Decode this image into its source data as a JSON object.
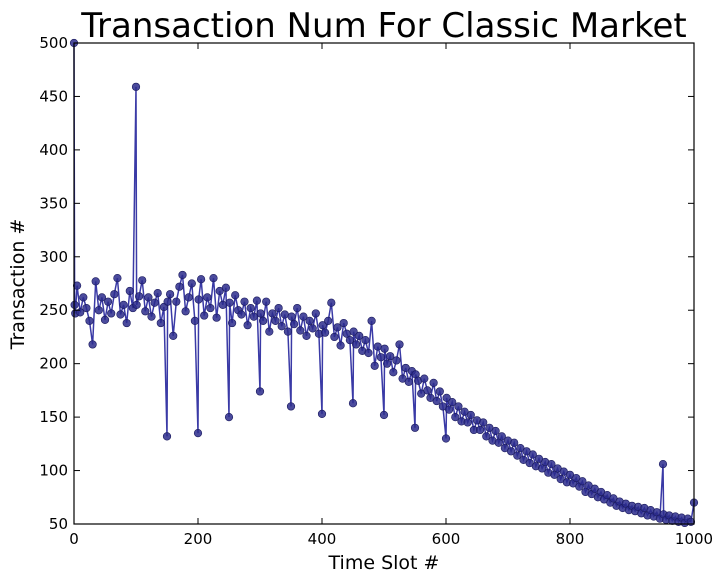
{
  "chart_data": {
    "type": "line",
    "title": "Transaction Num For Classic Market",
    "xlabel": "Time Slot #",
    "ylabel": "Transaction #",
    "xlim": [
      0,
      1000
    ],
    "ylim": [
      50,
      500
    ],
    "x_ticks": [
      0,
      200,
      400,
      600,
      800,
      1000
    ],
    "y_ticks": [
      50,
      100,
      150,
      200,
      250,
      300,
      350,
      400,
      450,
      500
    ],
    "grid": false,
    "legend": "none",
    "series": [
      {
        "marker": "circle",
        "line_color": "#3a3aa6",
        "marker_color": "#2c2c8c",
        "description_of_trend_points": [
          [
            0,
            500
          ],
          [
            1,
            255
          ],
          [
            2,
            247
          ],
          [
            5,
            273
          ],
          [
            10,
            248
          ],
          [
            15,
            262
          ],
          [
            20,
            252
          ],
          [
            25,
            240
          ],
          [
            30,
            218
          ],
          [
            35,
            277
          ],
          [
            40,
            250
          ],
          [
            45,
            262
          ],
          [
            50,
            241
          ],
          [
            55,
            258
          ],
          [
            60,
            247
          ],
          [
            65,
            265
          ],
          [
            70,
            280
          ],
          [
            75,
            246
          ],
          [
            80,
            255
          ],
          [
            85,
            238
          ],
          [
            90,
            268
          ],
          [
            95,
            252
          ],
          [
            100,
            459
          ],
          [
            101,
            255
          ],
          [
            105,
            263
          ],
          [
            110,
            278
          ],
          [
            115,
            249
          ],
          [
            120,
            262
          ],
          [
            125,
            244
          ],
          [
            130,
            257
          ],
          [
            135,
            266
          ],
          [
            140,
            238
          ],
          [
            145,
            253
          ],
          [
            150,
            132
          ],
          [
            151,
            258
          ],
          [
            155,
            265
          ],
          [
            160,
            226
          ],
          [
            165,
            258
          ],
          [
            170,
            272
          ],
          [
            175,
            283
          ],
          [
            180,
            249
          ],
          [
            185,
            262
          ],
          [
            190,
            275
          ],
          [
            195,
            240
          ],
          [
            200,
            135
          ],
          [
            201,
            260
          ],
          [
            205,
            279
          ],
          [
            210,
            245
          ],
          [
            215,
            262
          ],
          [
            220,
            252
          ],
          [
            225,
            280
          ],
          [
            230,
            243
          ],
          [
            235,
            268
          ],
          [
            240,
            255
          ],
          [
            245,
            271
          ],
          [
            250,
            150
          ],
          [
            251,
            257
          ],
          [
            255,
            238
          ],
          [
            260,
            264
          ],
          [
            265,
            250
          ],
          [
            270,
            246
          ],
          [
            275,
            258
          ],
          [
            280,
            236
          ],
          [
            285,
            252
          ],
          [
            290,
            244
          ],
          [
            295,
            259
          ],
          [
            300,
            174
          ],
          [
            301,
            247
          ],
          [
            305,
            240
          ],
          [
            310,
            258
          ],
          [
            315,
            230
          ],
          [
            320,
            247
          ],
          [
            325,
            240
          ],
          [
            330,
            252
          ],
          [
            335,
            235
          ],
          [
            340,
            246
          ],
          [
            345,
            230
          ],
          [
            350,
            160
          ],
          [
            351,
            244
          ],
          [
            355,
            237
          ],
          [
            360,
            252
          ],
          [
            365,
            231
          ],
          [
            370,
            244
          ],
          [
            375,
            226
          ],
          [
            380,
            240
          ],
          [
            385,
            233
          ],
          [
            390,
            247
          ],
          [
            395,
            228
          ],
          [
            400,
            153
          ],
          [
            401,
            236
          ],
          [
            405,
            229
          ],
          [
            410,
            240
          ],
          [
            415,
            257
          ],
          [
            420,
            225
          ],
          [
            425,
            234
          ],
          [
            430,
            217
          ],
          [
            435,
            238
          ],
          [
            440,
            228
          ],
          [
            445,
            222
          ],
          [
            450,
            163
          ],
          [
            451,
            230
          ],
          [
            455,
            218
          ],
          [
            460,
            226
          ],
          [
            465,
            212
          ],
          [
            470,
            222
          ],
          [
            475,
            210
          ],
          [
            480,
            240
          ],
          [
            485,
            198
          ],
          [
            490,
            216
          ],
          [
            495,
            206
          ],
          [
            500,
            152
          ],
          [
            501,
            214
          ],
          [
            505,
            200
          ],
          [
            510,
            207
          ],
          [
            515,
            192
          ],
          [
            520,
            203
          ],
          [
            525,
            218
          ],
          [
            530,
            186
          ],
          [
            535,
            196
          ],
          [
            540,
            183
          ],
          [
            545,
            193
          ],
          [
            550,
            140
          ],
          [
            551,
            190
          ],
          [
            555,
            184
          ],
          [
            560,
            172
          ],
          [
            565,
            186
          ],
          [
            570,
            175
          ],
          [
            575,
            168
          ],
          [
            580,
            182
          ],
          [
            585,
            165
          ],
          [
            590,
            174
          ],
          [
            595,
            160
          ],
          [
            600,
            130
          ],
          [
            601,
            168
          ],
          [
            605,
            157
          ],
          [
            610,
            164
          ],
          [
            615,
            150
          ],
          [
            620,
            160
          ],
          [
            625,
            146
          ],
          [
            630,
            155
          ],
          [
            635,
            145
          ],
          [
            640,
            152
          ],
          [
            645,
            138
          ],
          [
            650,
            147
          ],
          [
            655,
            138
          ],
          [
            660,
            145
          ],
          [
            665,
            132
          ],
          [
            670,
            140
          ],
          [
            675,
            128
          ],
          [
            680,
            137
          ],
          [
            685,
            126
          ],
          [
            690,
            132
          ],
          [
            695,
            121
          ],
          [
            700,
            128
          ],
          [
            705,
            118
          ],
          [
            710,
            126
          ],
          [
            715,
            114
          ],
          [
            720,
            121
          ],
          [
            725,
            110
          ],
          [
            730,
            118
          ],
          [
            735,
            107
          ],
          [
            740,
            115
          ],
          [
            745,
            104
          ],
          [
            750,
            111
          ],
          [
            755,
            102
          ],
          [
            760,
            108
          ],
          [
            765,
            98
          ],
          [
            770,
            106
          ],
          [
            775,
            96
          ],
          [
            780,
            102
          ],
          [
            785,
            92
          ],
          [
            790,
            99
          ],
          [
            795,
            89
          ],
          [
            800,
            96
          ],
          [
            805,
            88
          ],
          [
            810,
            93
          ],
          [
            815,
            85
          ],
          [
            820,
            90
          ],
          [
            825,
            80
          ],
          [
            830,
            86
          ],
          [
            835,
            78
          ],
          [
            840,
            83
          ],
          [
            845,
            75
          ],
          [
            850,
            80
          ],
          [
            855,
            73
          ],
          [
            860,
            77
          ],
          [
            865,
            70
          ],
          [
            870,
            74
          ],
          [
            875,
            67
          ],
          [
            880,
            71
          ],
          [
            885,
            65
          ],
          [
            890,
            69
          ],
          [
            895,
            63
          ],
          [
            900,
            67
          ],
          [
            905,
            62
          ],
          [
            910,
            66
          ],
          [
            915,
            60
          ],
          [
            920,
            65
          ],
          [
            925,
            58
          ],
          [
            930,
            63
          ],
          [
            935,
            57
          ],
          [
            940,
            61
          ],
          [
            945,
            55
          ],
          [
            950,
            106
          ],
          [
            951,
            59
          ],
          [
            955,
            54
          ],
          [
            960,
            58
          ],
          [
            965,
            53
          ],
          [
            970,
            57
          ],
          [
            975,
            52
          ],
          [
            980,
            56
          ],
          [
            985,
            51
          ],
          [
            990,
            55
          ],
          [
            995,
            52
          ],
          [
            1000,
            70
          ]
        ]
      }
    ]
  }
}
